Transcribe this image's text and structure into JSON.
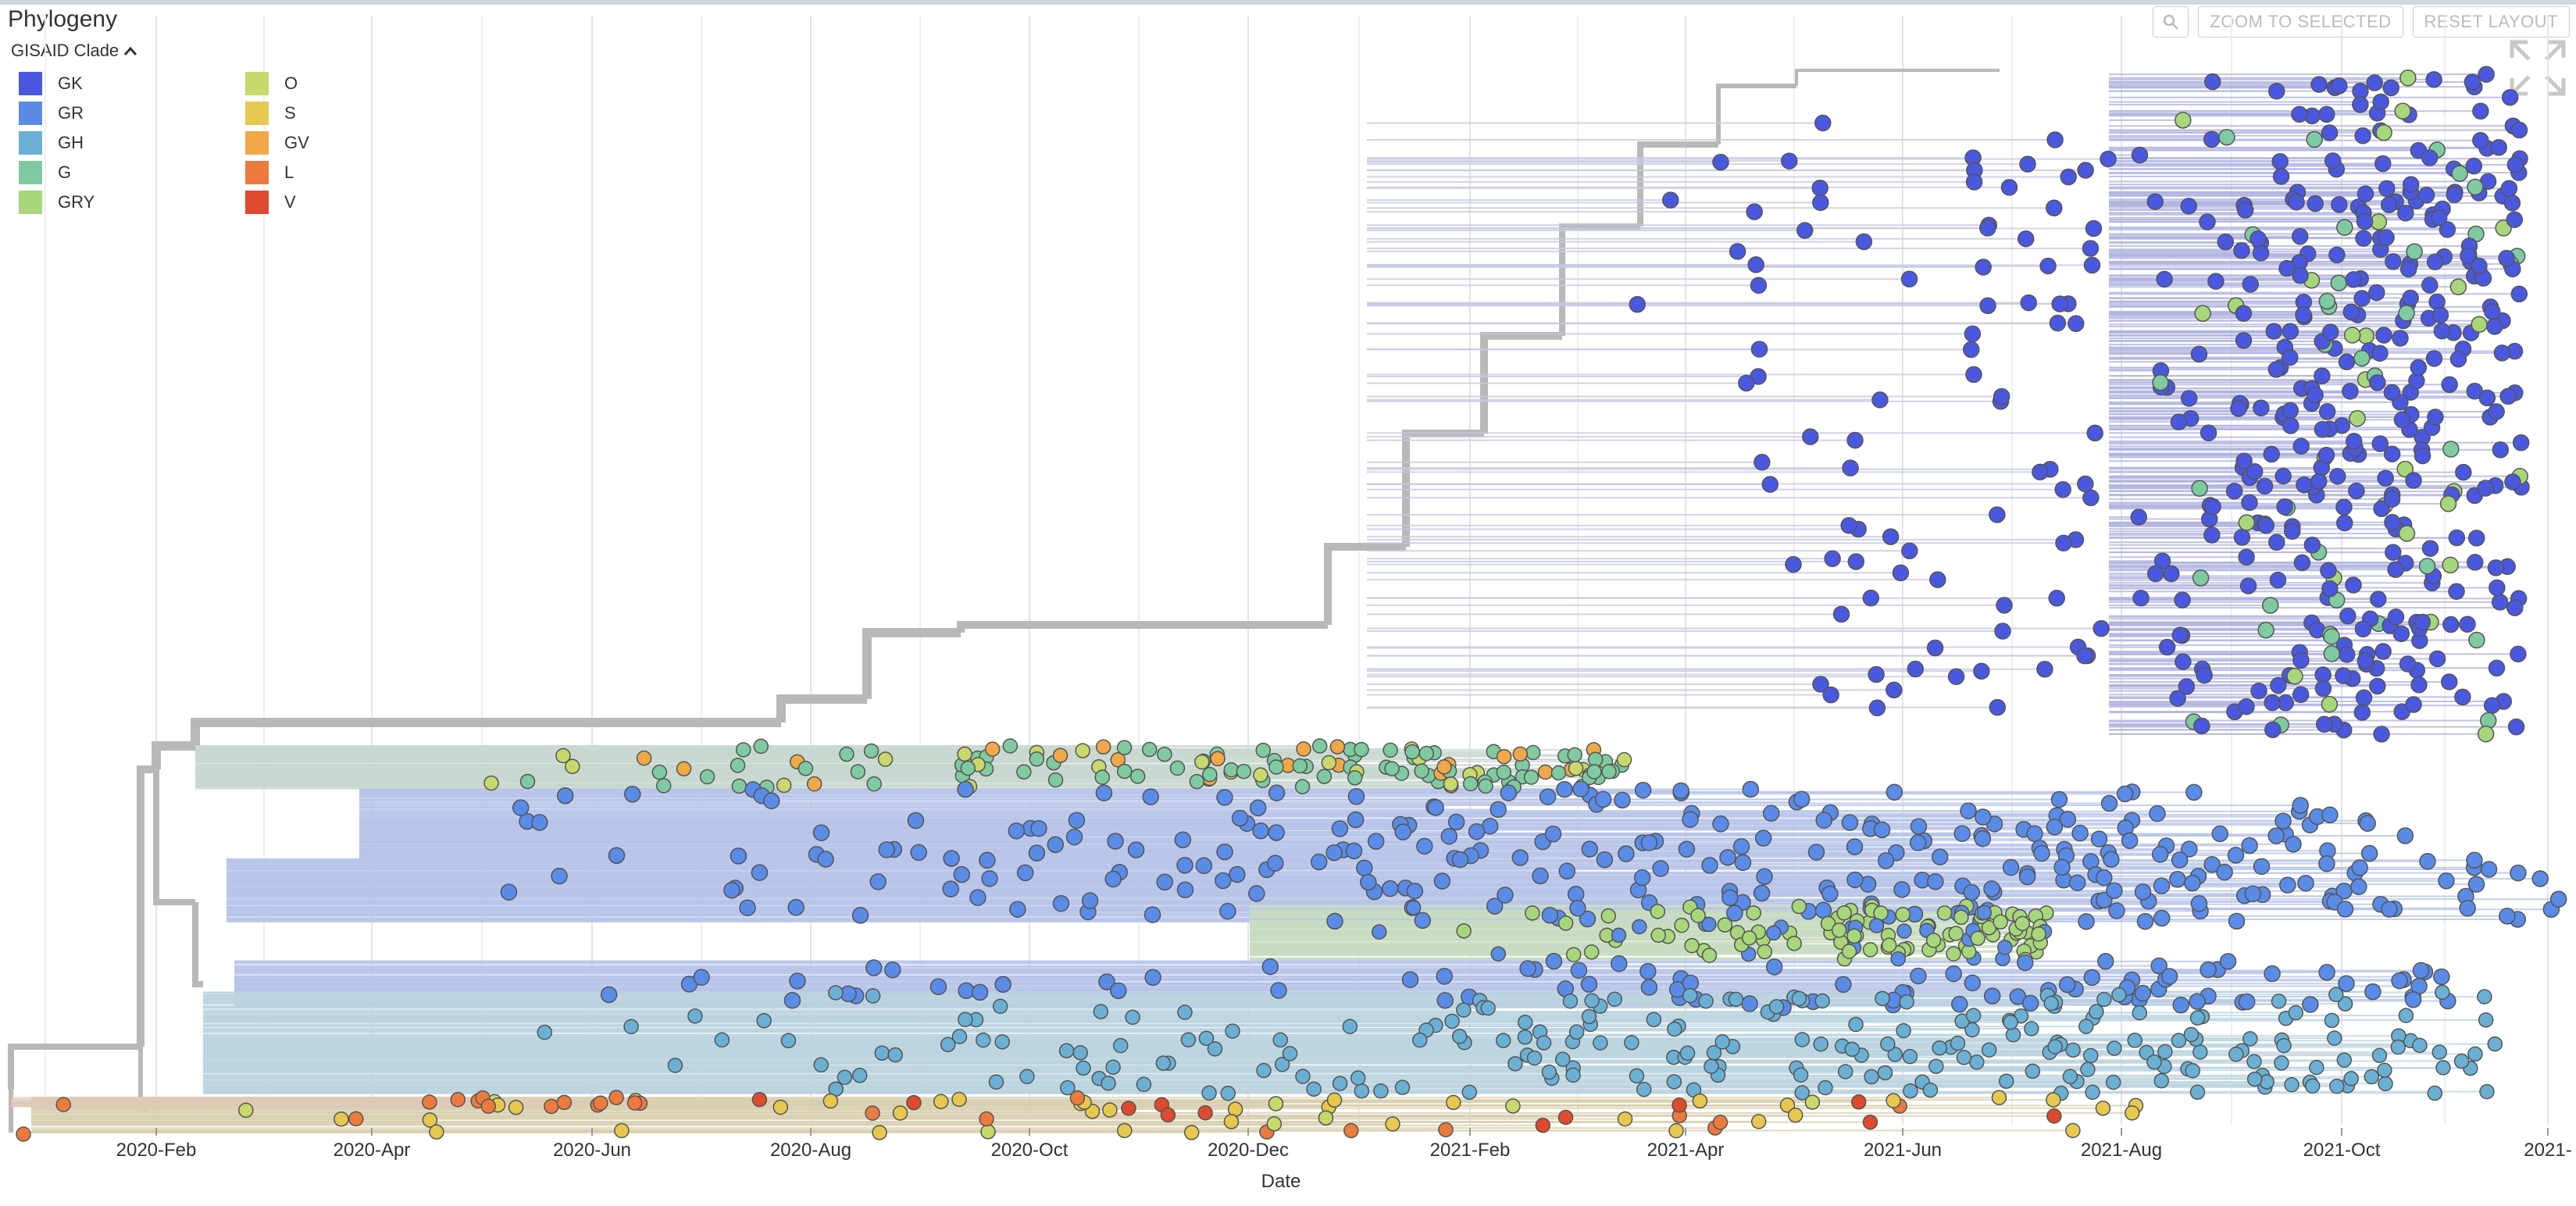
{
  "panel": {
    "title": "Phylogeny"
  },
  "toolbar": {
    "zoom_label": "ZOOM TO SELECTED",
    "reset_label": "RESET LAYOUT"
  },
  "color_by": {
    "label": "GISAID Clade"
  },
  "legend": [
    {
      "label": "GK",
      "color": "#4a58e0"
    },
    {
      "label": "GR",
      "color": "#5a8be6"
    },
    {
      "label": "GH",
      "color": "#6bb0d4"
    },
    {
      "label": "G",
      "color": "#7fcaa0"
    },
    {
      "label": "GRY",
      "color": "#a8d67a"
    },
    {
      "label": "O",
      "color": "#c8d86a"
    },
    {
      "label": "S",
      "color": "#e6c84e"
    },
    {
      "label": "GV",
      "color": "#f0a848"
    },
    {
      "label": "L",
      "color": "#ec7a3e"
    },
    {
      "label": "V",
      "color": "#de4a2e"
    }
  ],
  "axis": {
    "title": "Date",
    "ticks": [
      "2020-Feb",
      "2020-Apr",
      "2020-Jun",
      "2020-Aug",
      "2020-Oct",
      "2020-Dec",
      "2021-Feb",
      "2021-Apr",
      "2021-Jun",
      "2021-Aug",
      "2021-Oct",
      "2021-"
    ]
  },
  "colors": {
    "branch": "#bdbdbd",
    "grid": "#e4e4e4"
  }
}
